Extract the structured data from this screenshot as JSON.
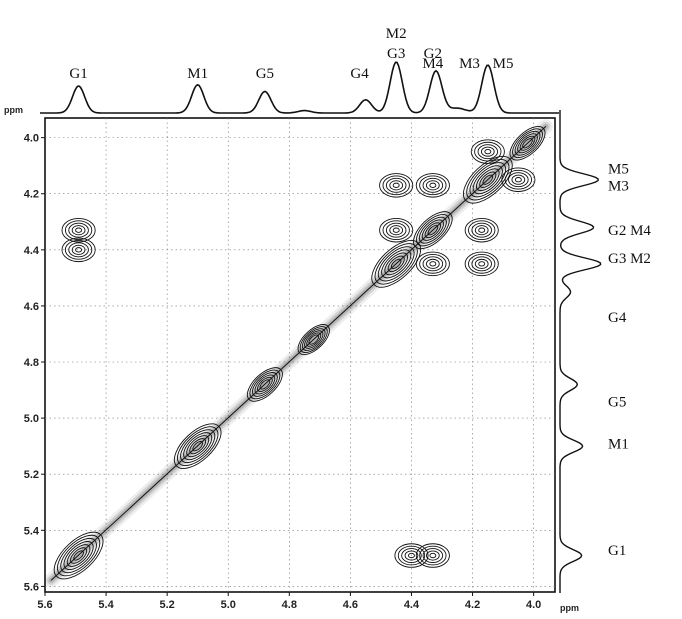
{
  "chart_data": {
    "type": "contour",
    "title": "",
    "x_axis": {
      "unit": "ppm",
      "range": [
        5.6,
        3.93
      ],
      "ticks": [
        5.6,
        5.4,
        5.2,
        5.0,
        4.8,
        4.6,
        4.4,
        4.2,
        4.0
      ],
      "tick_labels": [
        "5.6",
        "5.4",
        "5.2",
        "5.0",
        "4.8",
        "4.6",
        "4.4",
        "4.2",
        "4.0"
      ]
    },
    "y_axis": {
      "unit": "ppm",
      "range": [
        3.93,
        5.62
      ],
      "ticks": [
        4.0,
        4.2,
        4.4,
        4.6,
        4.8,
        5.0,
        5.2,
        5.4,
        5.6
      ],
      "tick_labels": [
        "4.0",
        "4.2",
        "4.4",
        "4.6",
        "4.8",
        "5.0",
        "5.2",
        "5.4",
        "5.6"
      ]
    },
    "grid": true,
    "projection_peaks": [
      {
        "label": "G1",
        "ppm": 5.49,
        "height": 0.45
      },
      {
        "label": "M1",
        "ppm": 5.1,
        "height": 0.47
      },
      {
        "label": "G5",
        "ppm": 4.88,
        "height": 0.36
      },
      {
        "label": "G4",
        "ppm": 4.55,
        "height": 0.22
      },
      {
        "label": "M2 G3",
        "ppm": 4.45,
        "height": 0.85
      },
      {
        "label": "G2 M4",
        "ppm": 4.32,
        "height": 0.7
      },
      {
        "label": "M3 M5",
        "ppm": 4.15,
        "height": 0.8
      }
    ],
    "top_labels": [
      {
        "text": "G1",
        "ppm": 5.49,
        "row": 1
      },
      {
        "text": "M1",
        "ppm": 5.1,
        "row": 1
      },
      {
        "text": "G5",
        "ppm": 4.88,
        "row": 1
      },
      {
        "text": "G4",
        "ppm": 4.57,
        "row": 1
      },
      {
        "text": "M2",
        "ppm": 4.45,
        "row": 3
      },
      {
        "text": "G3",
        "ppm": 4.45,
        "row": 2
      },
      {
        "text": "G2",
        "ppm": 4.33,
        "row": 2
      },
      {
        "text": "M4",
        "ppm": 4.33,
        "row": 1.5
      },
      {
        "text": "M3",
        "ppm": 4.21,
        "row": 1.5
      },
      {
        "text": "M5",
        "ppm": 4.1,
        "row": 1.5
      }
    ],
    "right_labels": [
      {
        "text": "M5",
        "ppm": 4.11
      },
      {
        "text": "M3",
        "ppm": 4.17
      },
      {
        "text": "G2 M4",
        "ppm": 4.33
      },
      {
        "text": "G3 M2",
        "ppm": 4.43
      },
      {
        "text": "G4",
        "ppm": 4.64
      },
      {
        "text": "G5",
        "ppm": 4.94
      },
      {
        "text": "M1",
        "ppm": 5.09
      },
      {
        "text": "G1",
        "ppm": 5.47
      }
    ],
    "cross_peaks": [
      {
        "x": 5.49,
        "y": 4.33
      },
      {
        "x": 5.49,
        "y": 4.4
      },
      {
        "x": 4.33,
        "y": 5.49
      },
      {
        "x": 4.4,
        "y": 5.49
      },
      {
        "x": 4.45,
        "y": 4.17
      },
      {
        "x": 4.33,
        "y": 4.17
      },
      {
        "x": 4.17,
        "y": 4.45
      },
      {
        "x": 4.17,
        "y": 4.33
      },
      {
        "x": 4.15,
        "y": 4.05
      },
      {
        "x": 4.05,
        "y": 4.15
      },
      {
        "x": 4.45,
        "y": 4.33
      },
      {
        "x": 4.33,
        "y": 4.45
      }
    ],
    "diagonal_peaks": [
      {
        "x": 5.49,
        "strength": 0.9
      },
      {
        "x": 5.1,
        "strength": 0.85
      },
      {
        "x": 4.88,
        "strength": 0.7
      },
      {
        "x": 4.72,
        "strength": 0.6
      },
      {
        "x": 4.45,
        "strength": 0.9
      },
      {
        "x": 4.33,
        "strength": 0.8
      },
      {
        "x": 4.15,
        "strength": 0.9
      },
      {
        "x": 4.02,
        "strength": 0.7
      }
    ]
  }
}
